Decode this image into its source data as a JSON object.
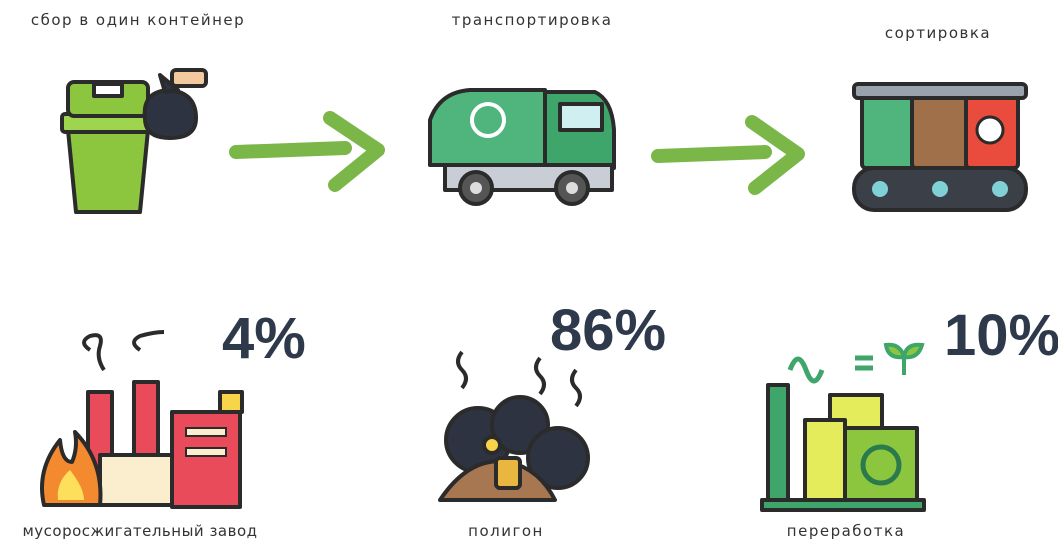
{
  "steps": [
    {
      "label": "сбор в один контейнер"
    },
    {
      "label": "транспортировка"
    },
    {
      "label": "сортировка"
    }
  ],
  "outcomes": [
    {
      "label": "мусоросжигательный завод",
      "percent": "4%"
    },
    {
      "label": "полигон",
      "percent": "86%"
    },
    {
      "label": "переработка",
      "percent": "10%"
    }
  ]
}
